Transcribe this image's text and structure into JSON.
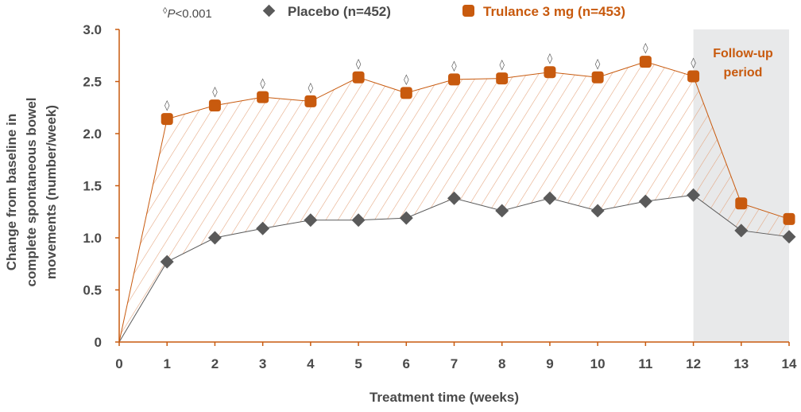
{
  "colors": {
    "placebo": "#5a5a5a",
    "trulance": "#c85a0e",
    "followup_bg": "#e8e9ea",
    "axis": "#c85a0e",
    "text": "#4a4a4a"
  },
  "legend": {
    "significance_marker": "◊",
    "significance_p": "P",
    "significance_value": "<0.001",
    "placebo_label": "Placebo (n=452)",
    "placebo_icon": "diamond-icon",
    "trulance_label": "Trulance 3 mg (n=453)",
    "trulance_icon": "rounded-square-icon"
  },
  "followup": {
    "line1": "Follow-up",
    "line2": "period",
    "start_week": 12,
    "end_week": 14
  },
  "chart_data": {
    "type": "line",
    "xlabel": "Treatment time (weeks)",
    "ylabel_lines": [
      "Change from baseline in",
      "complete spontaneous bowel",
      "movements (number/week)"
    ],
    "x": [
      0,
      1,
      2,
      3,
      4,
      5,
      6,
      7,
      8,
      9,
      10,
      11,
      12,
      13,
      14
    ],
    "xlim": [
      0,
      14
    ],
    "ylim": [
      0,
      3.0
    ],
    "y_ticks": [
      "0",
      "0.5",
      "1.0",
      "1.5",
      "2.0",
      "2.5",
      "3.0"
    ],
    "x_ticks": [
      "0",
      "1",
      "2",
      "3",
      "4",
      "5",
      "6",
      "7",
      "8",
      "9",
      "10",
      "11",
      "12",
      "13",
      "14"
    ],
    "series": [
      {
        "name": "Placebo (n=452)",
        "values": [
          0,
          0.77,
          1.0,
          1.09,
          1.17,
          1.17,
          1.19,
          1.38,
          1.26,
          1.38,
          1.26,
          1.35,
          1.41,
          1.07,
          1.01
        ],
        "marker": "diamond"
      },
      {
        "name": "Trulance 3 mg (n=453)",
        "values": [
          0,
          2.14,
          2.27,
          2.35,
          2.31,
          2.54,
          2.39,
          2.52,
          2.53,
          2.59,
          2.54,
          2.69,
          2.55,
          1.33,
          1.18
        ],
        "marker": "rounded-square"
      }
    ],
    "significance_weeks": [
      1,
      2,
      3,
      4,
      5,
      6,
      7,
      8,
      9,
      10,
      11,
      12
    ],
    "grid": false,
    "legend_position": "top"
  }
}
